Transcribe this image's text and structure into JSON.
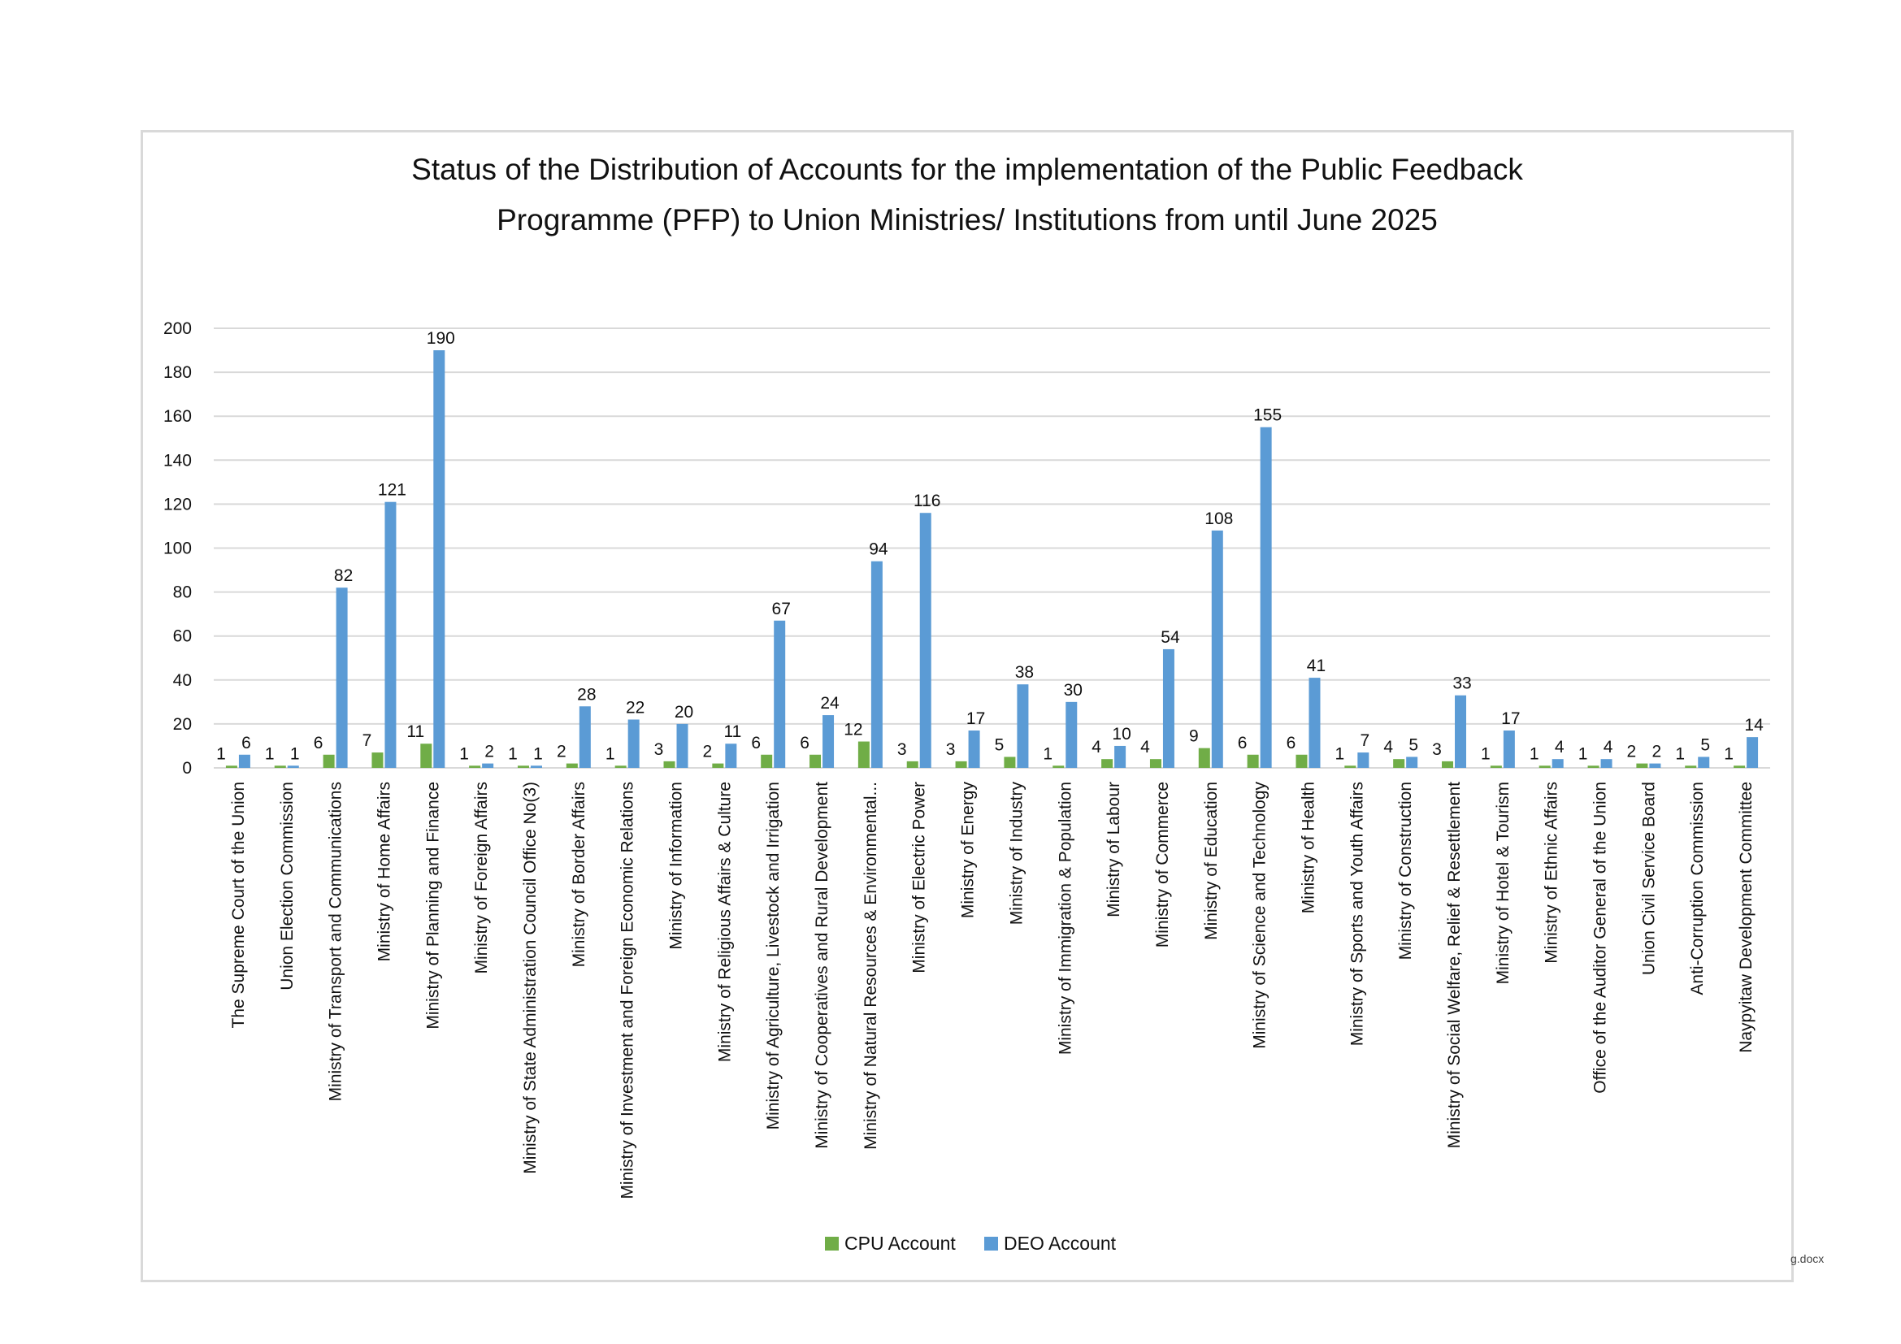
{
  "footer_note": "g.docx",
  "colors": {
    "cpu": "#70ad47",
    "deo": "#5b9bd5",
    "grid": "#d9d9d9"
  },
  "chart_data": {
    "type": "bar",
    "title_lines": [
      "Status of the Distribution of Accounts for the implementation of the Public Feedback",
      "Programme (PFP) to Union Ministries/ Institutions from until June 2025"
    ],
    "ylim": [
      0,
      200
    ],
    "yticks": [
      0,
      20,
      40,
      60,
      80,
      100,
      120,
      140,
      160,
      180,
      200
    ],
    "grid": true,
    "legend_position": "bottom",
    "categories": [
      "The Supreme Court of the Union",
      "Union Election Commission",
      "Ministry of Transport and Communications",
      "Ministry of Home Affairs",
      "Ministry of Planning and Finance",
      "Ministry of Foreign Affairs",
      "Ministry of State Administration Council Office No(3)",
      "Ministry of Border Affairs",
      "Ministry of Investment and Foreign Economic Relations",
      "Ministry of Information",
      "Ministry of Religious Affairs & Culture",
      "Ministry of Agriculture, Livestock and Irrigation",
      "Ministry of Cooperatives and Rural Development",
      "Ministry of Natural Resources & Environmental...",
      "Ministry of Electric Power",
      "Ministry of Energy",
      "Ministry of Industry",
      "Ministry of Immigration & Population",
      "Ministry of Labour",
      "Ministry of Commerce",
      "Ministry of Education",
      "Ministry of Science and Technology",
      "Ministry of Health",
      "Ministry of Sports and Youth Affairs",
      "Ministry of Construction",
      "Ministry of Social Welfare, Relief & Resettlement",
      "Ministry of Hotel & Tourism",
      "Ministry of Ethnic Affairs",
      "Office of the Auditor General of the Union",
      "Union Civil Service Board",
      "Anti-Corruption Commission",
      "Naypyitaw Development Committee"
    ],
    "series": [
      {
        "name": "CPU Account",
        "color": "#70ad47",
        "values": [
          1,
          1,
          6,
          7,
          11,
          1,
          1,
          2,
          1,
          3,
          2,
          6,
          6,
          12,
          3,
          3,
          5,
          1,
          4,
          4,
          9,
          6,
          6,
          1,
          4,
          3,
          1,
          1,
          1,
          2,
          1,
          1
        ]
      },
      {
        "name": "DEO Account",
        "color": "#5b9bd5",
        "values": [
          6,
          1,
          82,
          121,
          190,
          2,
          1,
          28,
          22,
          20,
          11,
          67,
          24,
          94,
          116,
          17,
          38,
          30,
          10,
          54,
          108,
          155,
          41,
          7,
          5,
          33,
          17,
          4,
          4,
          2,
          5,
          14
        ]
      }
    ]
  }
}
